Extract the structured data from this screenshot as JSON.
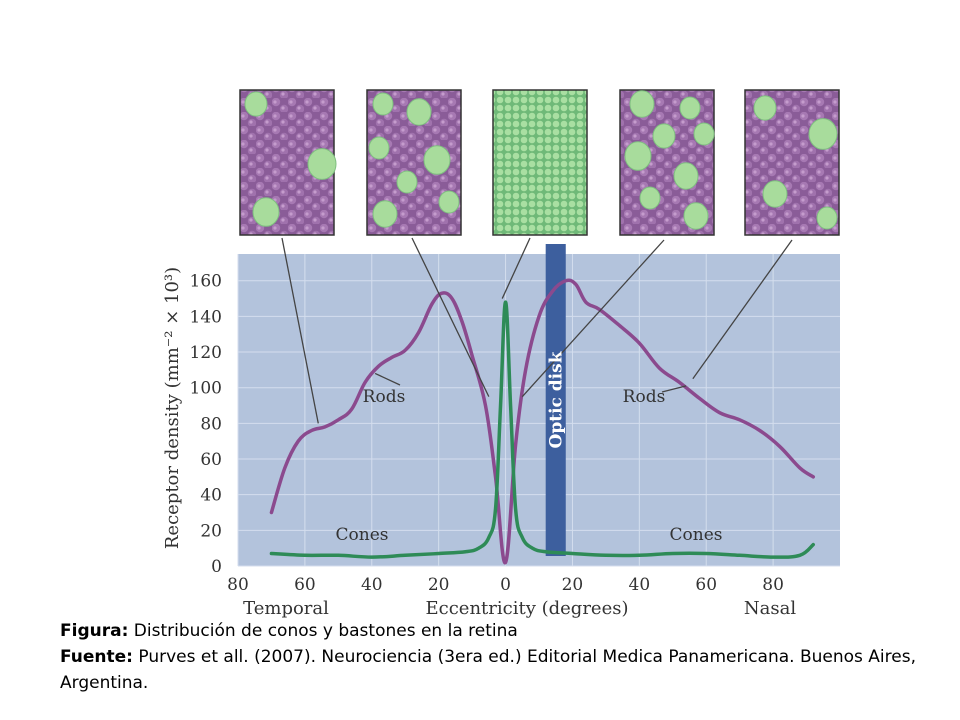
{
  "chart_data": {
    "type": "line",
    "title": "",
    "xlabel": "Eccentricity (degrees)",
    "ylabel": "Receptor density (mm⁻² × 10³)",
    "x_side_labels": {
      "left": "Temporal",
      "right": "Nasal"
    },
    "xticks": [
      80,
      60,
      40,
      20,
      0,
      20,
      40,
      60,
      80
    ],
    "yticks": [
      0,
      20,
      40,
      60,
      80,
      100,
      120,
      140,
      160
    ],
    "xlim": [
      -80,
      100
    ],
    "ylim": [
      0,
      175
    ],
    "x_note": "signed eccentricity: negative = temporal, positive = nasal",
    "grid": true,
    "series": [
      {
        "name": "Rods",
        "color": "#8b4a8e",
        "x": [
          -70,
          -66,
          -62,
          -58,
          -54,
          -50,
          -46,
          -42,
          -38,
          -34,
          -30,
          -26,
          -22,
          -19,
          -16,
          -13,
          -10,
          -6,
          -3,
          0,
          3,
          6,
          10,
          14,
          18,
          21,
          24,
          28,
          34,
          40,
          46,
          52,
          58,
          64,
          70,
          76,
          82,
          88,
          92
        ],
        "y": [
          30,
          55,
          70,
          76,
          78,
          82,
          88,
          103,
          112,
          117,
          121,
          131,
          147,
          153,
          150,
          137,
          118,
          90,
          50,
          2,
          68,
          110,
          140,
          154,
          160,
          158,
          148,
          144,
          135,
          125,
          111,
          103,
          94,
          86,
          82,
          76,
          67,
          55,
          50
        ]
      },
      {
        "name": "Cones",
        "color": "#2e8b57",
        "x": [
          -70,
          -60,
          -50,
          -40,
          -30,
          -20,
          -12,
          -8,
          -5,
          -3,
          -1.5,
          0,
          1.5,
          3,
          5,
          8,
          12,
          20,
          30,
          40,
          50,
          60,
          70,
          80,
          88,
          92
        ],
        "y": [
          7,
          6,
          6,
          5,
          6,
          7,
          8,
          10,
          16,
          32,
          90,
          148,
          90,
          32,
          16,
          10,
          8,
          7,
          6,
          6,
          7,
          7,
          6,
          5,
          6,
          12
        ]
      }
    ],
    "annotations": [
      {
        "label": "Optic disk",
        "x_range": [
          12,
          18
        ],
        "color": "#3d5f9e"
      },
      {
        "label": "Rods",
        "series": "Rods"
      },
      {
        "label": "Rods",
        "series": "Rods"
      },
      {
        "label": "Cones",
        "series": "Cones"
      },
      {
        "label": "Cones",
        "series": "Cones"
      }
    ]
  },
  "colors": {
    "plot_background": "#b3c3dc",
    "gridline": "#d4deee",
    "rods": "#8b4a8e",
    "cones": "#2e8b57",
    "optic_disk": "#3d5f9e",
    "mosaic_rod_cell": "#9a6aa5",
    "mosaic_cone_cell": "#a8dc9c"
  },
  "mosaic_panels": [
    {
      "name": "temporal-far",
      "cone_density": "sparse"
    },
    {
      "name": "temporal-mid",
      "cone_density": "medium"
    },
    {
      "name": "fovea",
      "cone_density": "packed cones only"
    },
    {
      "name": "nasal-mid",
      "cone_density": "medium"
    },
    {
      "name": "nasal-far",
      "cone_density": "sparse"
    }
  ],
  "caption": {
    "figura_label": "Figura:",
    "figura_text": " Distribución de conos y bastones en la retina",
    "fuente_label": "Fuente:",
    "fuente_text": " Purves et all. (2007).  Neurociencia (3era ed.) Editorial Medica Panamericana. Buenos Aires, Argentina."
  }
}
